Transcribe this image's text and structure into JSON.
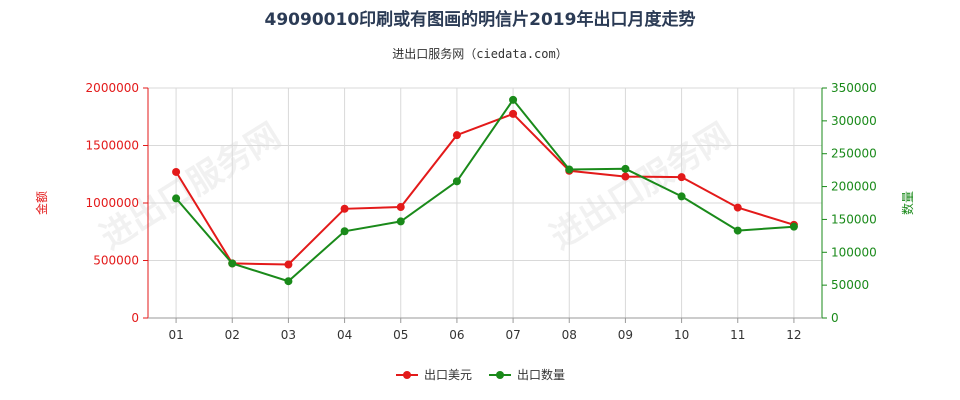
{
  "chart_data": {
    "type": "line",
    "title": "49090010印刷或有图画的明信片2019年出口月度走势",
    "subtitle": "进出口服务网（ciedata.com）",
    "categories": [
      "01",
      "02",
      "03",
      "04",
      "05",
      "06",
      "07",
      "08",
      "09",
      "10",
      "11",
      "12"
    ],
    "y_left": {
      "label": "金额",
      "min": 0,
      "max": 2000000,
      "ticks": [
        0,
        500000,
        1000000,
        1500000,
        2000000
      ],
      "color": "#e31a1a"
    },
    "y_right": {
      "label": "数量",
      "min": 0,
      "max": 350000,
      "ticks": [
        0,
        50000,
        100000,
        150000,
        200000,
        250000,
        300000,
        350000
      ],
      "color": "#1a8a1a"
    },
    "series": [
      {
        "name": "出口美元",
        "axis": "left",
        "color": "#e31a1a",
        "values": [
          1270000,
          475000,
          465000,
          950000,
          965000,
          1590000,
          1775000,
          1280000,
          1230000,
          1225000,
          960000,
          810000
        ]
      },
      {
        "name": "出口数量",
        "axis": "right",
        "color": "#1a8a1a",
        "values": [
          182000,
          83000,
          56000,
          132000,
          147000,
          208000,
          332000,
          226000,
          227000,
          185000,
          133000,
          139000
        ]
      }
    ],
    "watermark": [
      "进出口服务网",
      "进出口服务网"
    ]
  }
}
